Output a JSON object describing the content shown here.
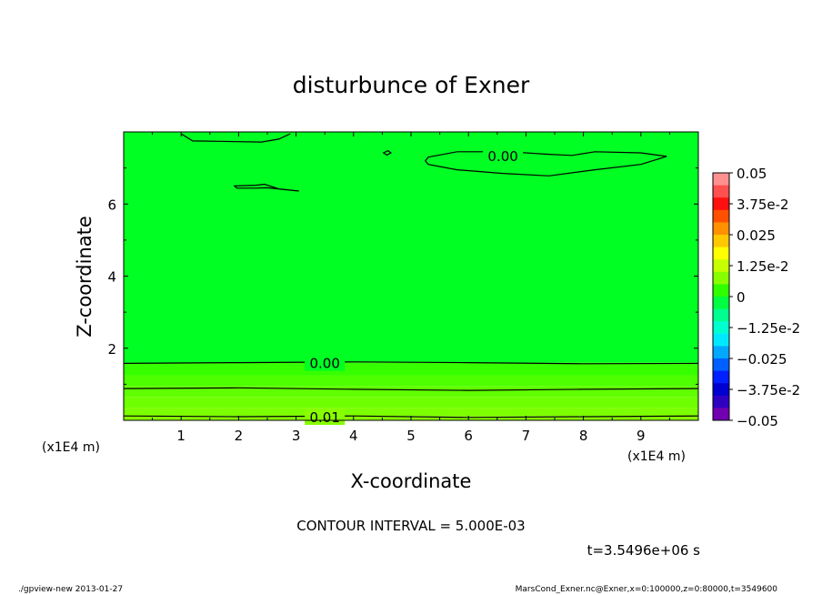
{
  "chart_data": {
    "type": "contour",
    "title": "disturbunce of Exner",
    "xlabel": "X-coordinate",
    "ylabel": "Z-coordinate",
    "x_unit": "(x1E4 m)",
    "y_unit": "(x1E4 m)",
    "xlim": [
      0,
      10
    ],
    "ylim": [
      0,
      8
    ],
    "x_ticks": [
      "1",
      "2",
      "3",
      "4",
      "5",
      "6",
      "7",
      "8",
      "9"
    ],
    "y_ticks": [
      "2",
      "4",
      "6"
    ],
    "contour_interval_text": "CONTOUR INTERVAL = 5.000E-03",
    "time_text": "t=3.5496e+06 s",
    "contour_labels": [
      {
        "text": "0.00",
        "x": 3.5,
        "z": 1.6
      },
      {
        "text": "0.00",
        "x": 6.6,
        "z": 7.35
      },
      {
        "text": "0.01",
        "x": 3.5,
        "z": 0.1
      }
    ],
    "bands": [
      {
        "from": 0.0,
        "to": 0.12,
        "color": "#88ff00"
      },
      {
        "from": 0.12,
        "to": 0.35,
        "color": "#7cff00"
      },
      {
        "from": 0.35,
        "to": 0.65,
        "color": "#6eff00"
      },
      {
        "from": 0.65,
        "to": 0.95,
        "color": "#60ff00"
      },
      {
        "from": 0.95,
        "to": 1.25,
        "color": "#4dff00"
      },
      {
        "from": 1.25,
        "to": 1.6,
        "color": "#36ff00"
      },
      {
        "from": 1.6,
        "to": 8.0,
        "color": "#00ff22"
      }
    ],
    "colorbar": {
      "labels": [
        "0.05",
        "3.75e-2",
        "0.025",
        "1.25e-2",
        "0",
        "−1.25e-2",
        "−0.025",
        "−3.75e-2",
        "−0.05"
      ],
      "colors": [
        "#ff9090",
        "#ff5050",
        "#ff1010",
        "#ff5000",
        "#ff9000",
        "#ffc800",
        "#ffff00",
        "#c8ff00",
        "#88ff00",
        "#30ff00",
        "#00ff40",
        "#00ff90",
        "#00ffd0",
        "#00e8ff",
        "#00a8ff",
        "#0060ff",
        "#0020ff",
        "#0000d0",
        "#3000c0",
        "#7000b0"
      ]
    }
  },
  "footer": {
    "left": "./gpview-new   2013-01-27",
    "right": "MarsCond_Exner.nc@Exner,x=0:100000,z=0:80000,t=3549600"
  }
}
